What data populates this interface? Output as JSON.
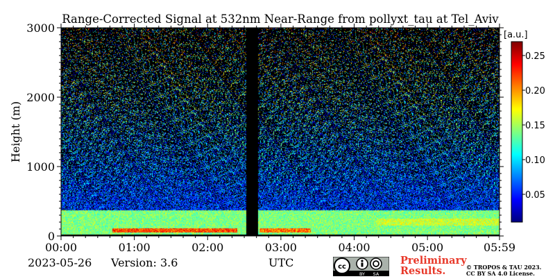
{
  "chart_data": {
    "type": "heatmap",
    "title": "Range-Corrected Signal at 532nm Near-Range from pollyxt_tau at Tel_Aviv",
    "ylabel": "Height (m)",
    "xlabel": "UTC",
    "x_ticks": [
      "00:00",
      "01:00",
      "02:00",
      "03:00",
      "04:00",
      "05:00",
      "05:59"
    ],
    "x_range_hours": [
      0,
      5.983
    ],
    "y_ticks": [
      0,
      1000,
      2000,
      3000
    ],
    "ylim": [
      0,
      3000
    ],
    "colorbar": {
      "label": "[a.u.]",
      "ticks": [
        0.05,
        0.1,
        0.15,
        0.2,
        0.25
      ],
      "tick_labels": [
        "0.05",
        "0.10",
        "0.15",
        "0.20",
        "0.25"
      ],
      "range": [
        0.01,
        0.27
      ],
      "colormap": "jet"
    },
    "data_gaps_hours": [
      [
        2.52,
        2.68
      ]
    ],
    "features": {
      "boundary_layer_top_m": 380,
      "enhanced_layer_m": [
        50,
        120
      ],
      "noise_increases_with_height": true
    }
  },
  "footer": {
    "date": "2023-05-26",
    "version": "Version: 3.6",
    "preliminary": [
      "Preliminary",
      "Results."
    ],
    "copyright": [
      "© TROPOS & TAU 2023.",
      "CC BY SA 4.0 License."
    ]
  },
  "colors": {
    "gap": "#000000",
    "preliminary_text": "#e8392a"
  },
  "icons": {
    "license_badge": "cc-by-sa-badge"
  }
}
